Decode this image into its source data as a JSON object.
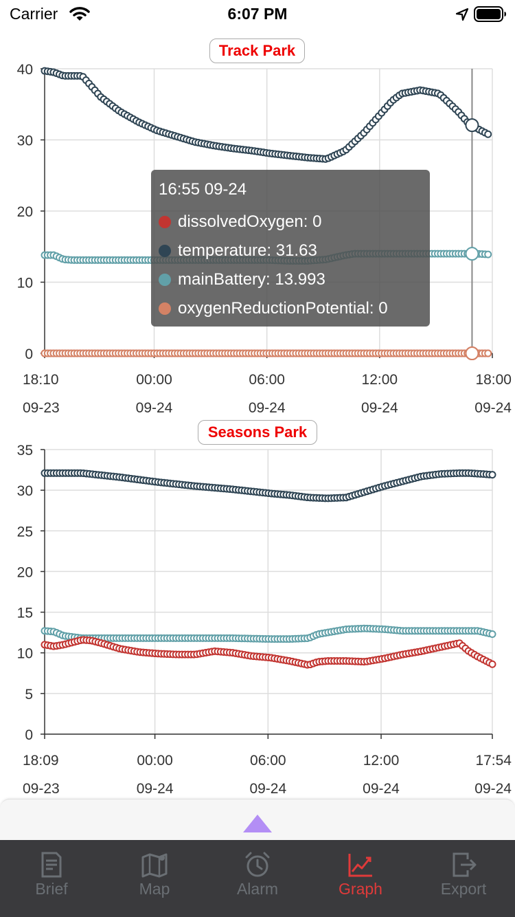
{
  "status_bar": {
    "carrier": "Carrier",
    "time": "6:07 PM"
  },
  "colors": {
    "dissolvedOxygen": "#c23531",
    "temperature": "#2f4554",
    "mainBattery": "#61a0a8",
    "oxygenReductionPotential": "#d48265",
    "active_tab": "#e03a3a",
    "tab_bar": "#3a3a3d"
  },
  "chart_data": [
    {
      "type": "scatter",
      "title": "Track Park",
      "ylim": [
        0,
        40
      ],
      "yticks": [
        "0",
        "10",
        "20",
        "30",
        "40"
      ],
      "xticks": [
        {
          "time": "18:10",
          "date": "09-23"
        },
        {
          "time": "00:00",
          "date": "09-24"
        },
        {
          "time": "06:00",
          "date": "09-24"
        },
        {
          "time": "12:00",
          "date": "09-24"
        },
        {
          "time": "18:00",
          "date": "09-24"
        }
      ],
      "grid": true,
      "series": [
        {
          "name": "temperature",
          "x": [
            0,
            0.5,
            1,
            1.5,
            2,
            3,
            4,
            5,
            6,
            7,
            8,
            9,
            10,
            11,
            11.5,
            12,
            13,
            14,
            15,
            16,
            17,
            18,
            18.5,
            19,
            20,
            21,
            22,
            22.5,
            23,
            23.6
          ],
          "y": [
            39.7,
            39.5,
            39,
            39,
            39,
            36,
            34,
            32.5,
            31.3,
            30.5,
            29.7,
            29.2,
            28.8,
            28.5,
            28.3,
            28.1,
            27.8,
            27.5,
            27.3,
            28.5,
            31,
            34,
            35.5,
            36.5,
            37,
            36.5,
            34,
            32.5,
            31.63,
            30.8
          ]
        },
        {
          "name": "mainBattery",
          "x": [
            0,
            0.5,
            1,
            1.5,
            2,
            4,
            6,
            8,
            10,
            12,
            13,
            14,
            15,
            16,
            16.5,
            17,
            18,
            19,
            20,
            21,
            22,
            23,
            23.6
          ],
          "y": [
            13.8,
            13.8,
            13.2,
            13.1,
            13.1,
            13.1,
            13.1,
            13.1,
            13.1,
            13.1,
            13.0,
            13.0,
            13.2,
            13.8,
            14.0,
            14.0,
            14.0,
            14.0,
            14.0,
            14.0,
            14.0,
            13.993,
            13.9
          ]
        },
        {
          "name": "dissolvedOxygen",
          "x": [
            0,
            23.6
          ],
          "y": [
            0,
            0
          ]
        },
        {
          "name": "oxygenReductionPotential",
          "x": [
            0,
            23.6
          ],
          "y": [
            0,
            0
          ]
        }
      ],
      "tooltip": {
        "time": "16:55 09-24",
        "rows": [
          {
            "label": "dissolvedOxygen: 0",
            "color": "#c23531"
          },
          {
            "label": "temperature: 31.63",
            "color": "#2f4554"
          },
          {
            "label": "mainBattery: 13.993",
            "color": "#61a0a8"
          },
          {
            "label": "oxygenReductionPotential: 0",
            "color": "#d48265"
          }
        ]
      }
    },
    {
      "type": "scatter",
      "title": "Seasons Park",
      "ylim": [
        0,
        35
      ],
      "yticks": [
        "0",
        "5",
        "10",
        "15",
        "20",
        "25",
        "30",
        "35"
      ],
      "xticks": [
        {
          "time": "18:09",
          "date": "09-23"
        },
        {
          "time": "00:00",
          "date": "09-24"
        },
        {
          "time": "06:00",
          "date": "09-24"
        },
        {
          "time": "12:00",
          "date": "09-24"
        },
        {
          "time": "17:54",
          "date": "09-24"
        }
      ],
      "grid": true,
      "series": [
        {
          "name": "temperature",
          "x": [
            0,
            2,
            4,
            6,
            8,
            10,
            12,
            13,
            14,
            15,
            16,
            17,
            18,
            19,
            20,
            21,
            22,
            22.5,
            23.2,
            23.75
          ],
          "y": [
            32.1,
            32.1,
            31.6,
            31,
            30.5,
            30.1,
            29.6,
            29.4,
            29.1,
            29.0,
            29.1,
            29.8,
            30.5,
            31.1,
            31.7,
            32.0,
            32.1,
            32.1,
            32.0,
            31.9
          ]
        },
        {
          "name": "mainBattery",
          "x": [
            0,
            0.5,
            1,
            2,
            4,
            6,
            8,
            10,
            12,
            13,
            14,
            14.5,
            15,
            16,
            17,
            18,
            19,
            20,
            22,
            23,
            23.75
          ],
          "y": [
            12.7,
            12.6,
            12.1,
            11.8,
            11.8,
            11.8,
            11.8,
            11.8,
            11.7,
            11.7,
            11.8,
            12.3,
            12.5,
            12.9,
            13.0,
            12.9,
            12.7,
            12.7,
            12.7,
            12.7,
            12.3
          ]
        },
        {
          "name": "dissolvedOxygen",
          "x": [
            0,
            0.5,
            1,
            1.5,
            2,
            2.5,
            3,
            4,
            5,
            6,
            7,
            8,
            9,
            10,
            11,
            12,
            13,
            14,
            14.5,
            15,
            16,
            17,
            18,
            19,
            20,
            21,
            22,
            22.5,
            23,
            23.75
          ],
          "y": [
            11,
            10.8,
            11,
            11.3,
            11.6,
            11.5,
            11.2,
            10.5,
            10.1,
            9.9,
            9.8,
            9.8,
            10.2,
            10.0,
            9.6,
            9.4,
            9.0,
            8.5,
            8.9,
            9.0,
            9.0,
            8.9,
            9.3,
            9.8,
            10.2,
            10.7,
            11.2,
            10.2,
            9.5,
            8.6
          ]
        }
      ]
    }
  ],
  "drawer": {
    "toggle_icon": "triangle-up-icon"
  },
  "tabs": [
    {
      "label": "Brief",
      "icon": "document-icon",
      "active": false
    },
    {
      "label": "Map",
      "icon": "map-icon",
      "active": false
    },
    {
      "label": "Alarm",
      "icon": "alarm-clock-icon",
      "active": false
    },
    {
      "label": "Graph",
      "icon": "line-chart-icon",
      "active": true
    },
    {
      "label": "Export",
      "icon": "export-icon",
      "active": false
    }
  ]
}
